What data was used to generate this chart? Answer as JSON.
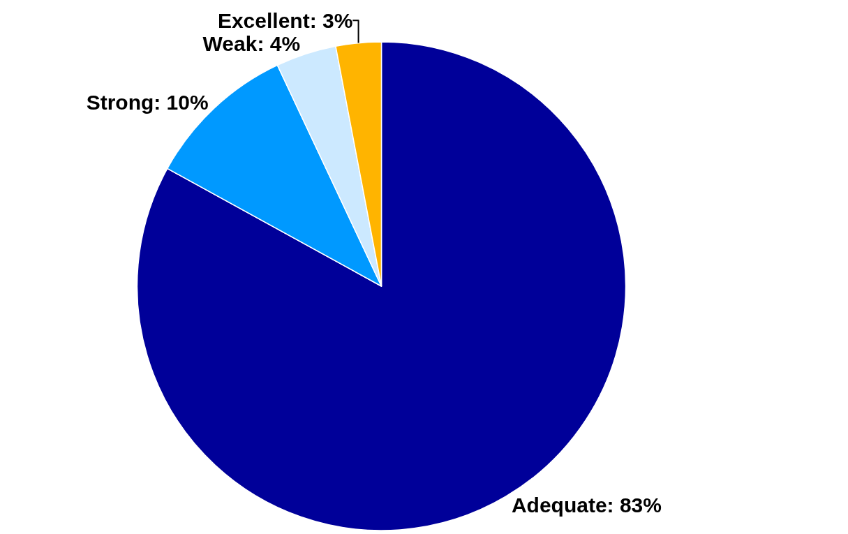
{
  "chart_data": {
    "type": "pie",
    "categories": [
      "Adequate",
      "Strong",
      "Weak",
      "Excellent"
    ],
    "values": [
      83,
      10,
      4,
      3
    ],
    "colors": [
      "#000099",
      "#0099ff",
      "#cce9ff",
      "#ffb400"
    ],
    "value_labels": [
      "83%",
      "10%",
      "4%",
      "3%"
    ],
    "legend": false
  }
}
